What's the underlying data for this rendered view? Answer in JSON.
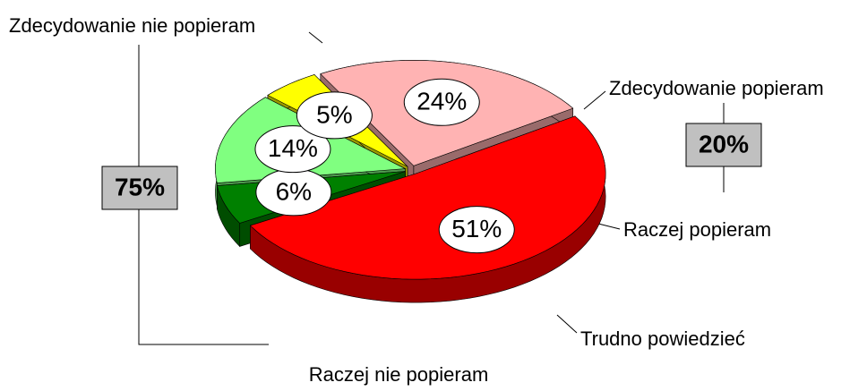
{
  "chart_data": {
    "type": "pie3d",
    "categories": [
      "Zdecydowanie nie popieram",
      "Zdecydowanie popieram",
      "Raczej popieram",
      "Trudno powiedzieć",
      "Raczej nie popieram"
    ],
    "values": [
      51,
      6,
      14,
      5,
      24
    ],
    "value_labels": [
      "51%",
      "6%",
      "14%",
      "5%",
      "24%"
    ],
    "colors": [
      "#ff0000",
      "#008000",
      "#80ff80",
      "#ffff00",
      "#ffb3b3"
    ],
    "annotations": [
      "75%",
      "20%"
    ]
  }
}
